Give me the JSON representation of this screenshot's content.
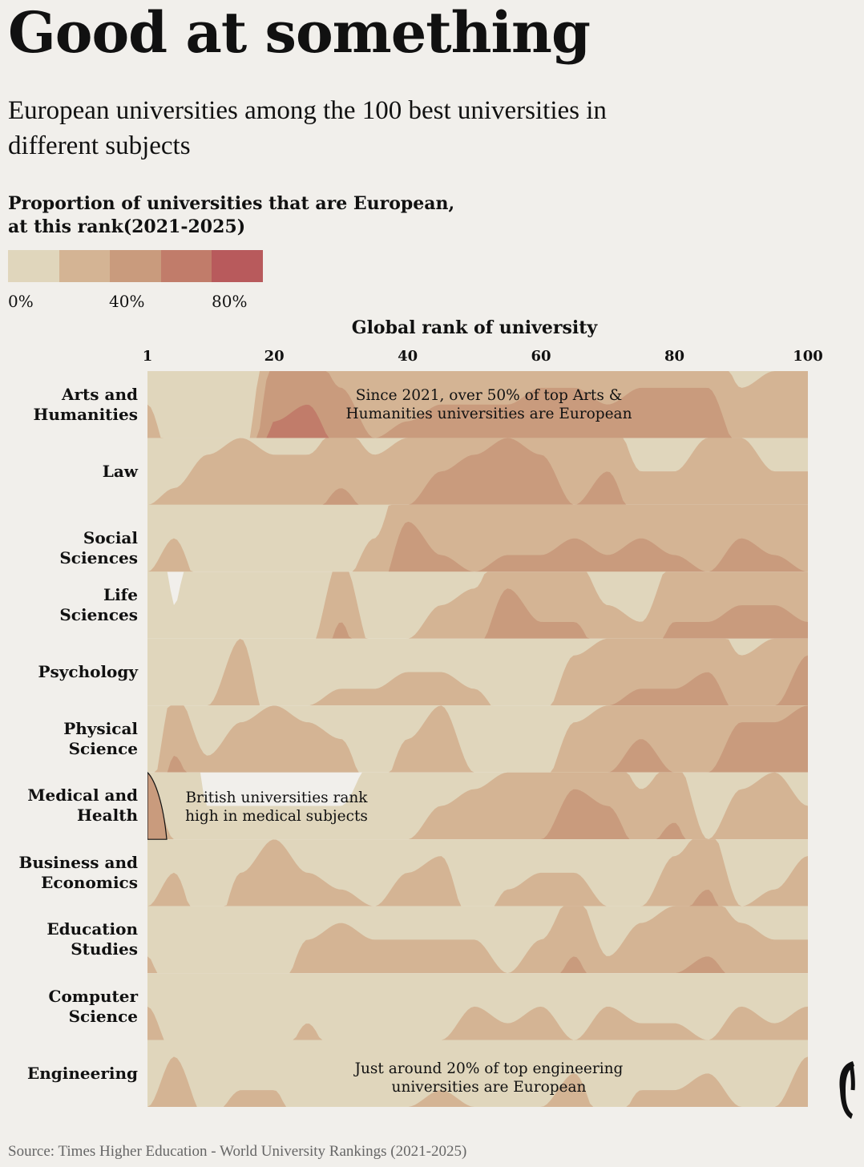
{
  "title": "Good at something",
  "subtitle": "European universities among the 100 best universities in different subjects",
  "legend": {
    "title_line1": "Proportion of universities that are European,",
    "title_line2": "at this rank(2021-2025)",
    "labels": [
      "0%",
      "40%",
      "80%"
    ],
    "colors": [
      "#e0d6bc",
      "#d4b494",
      "#c99b7d",
      "#c17c6a",
      "#b85a5c"
    ]
  },
  "colors": {
    "empty": "#f1efeb",
    "c0": "#e0d6bc",
    "c1": "#d4b494",
    "c2": "#c99b7d",
    "c3": "#c17c6a",
    "c4": "#b85a5c"
  },
  "annotations": {
    "arts_line1": "Since 2021, over 50% of top Arts &",
    "arts_line2": "Humanities universities are European",
    "medical_line1": "British universities rank",
    "medical_line2": "high in medical subjects",
    "eng_line1": "Just around 20% of top engineering",
    "eng_line2": "universities are European"
  },
  "source": "Source: Times Higher Education - World University Rankings (2021-2025)",
  "chart_data": {
    "type": "heatmap",
    "xlabel": "Global rank of university",
    "x_ticks": [
      1,
      20,
      40,
      60,
      80,
      100
    ],
    "xlim": [
      1,
      100
    ],
    "value_unit": "proportion European (0-1)",
    "x": [
      1,
      5,
      10,
      15,
      20,
      25,
      30,
      35,
      40,
      45,
      50,
      55,
      60,
      65,
      70,
      75,
      80,
      85,
      90,
      95,
      100
    ],
    "subjects": [
      {
        "name": "Arts and Humanities",
        "label_line1": "Arts and",
        "label_line2": "Humanities",
        "values": [
          0.3,
          0.1,
          0.05,
          0.1,
          0.65,
          0.7,
          0.55,
          0.4,
          0.45,
          0.5,
          0.5,
          0.5,
          0.55,
          0.55,
          0.5,
          0.55,
          0.55,
          0.55,
          0.35,
          0.4,
          0.4
        ]
      },
      {
        "name": "Law",
        "label_line1": "Law",
        "label_line2": "",
        "values": [
          0.2,
          0.25,
          0.35,
          0.4,
          0.35,
          0.35,
          0.45,
          0.35,
          0.4,
          0.5,
          0.55,
          0.6,
          0.55,
          0.4,
          0.5,
          0.3,
          0.3,
          0.4,
          0.4,
          0.3,
          0.3
        ]
      },
      {
        "name": "Social Sciences",
        "label_line1": "Social Sciences",
        "label_line2": "",
        "values": [
          0.2,
          0.3,
          0.1,
          0.1,
          0.1,
          0.05,
          0.15,
          0.3,
          0.55,
          0.45,
          0.4,
          0.45,
          0.45,
          0.5,
          0.45,
          0.5,
          0.45,
          0.4,
          0.5,
          0.45,
          0.4
        ]
      },
      {
        "name": "Life Sciences",
        "label_line1": "Life",
        "label_line2": "Sciences",
        "values": [
          0.2,
          0.02,
          0.15,
          0.2,
          0.1,
          0.15,
          0.45,
          0.15,
          0.2,
          0.3,
          0.35,
          0.55,
          0.45,
          0.45,
          0.3,
          0.25,
          0.45,
          0.45,
          0.5,
          0.5,
          0.45
        ]
      },
      {
        "name": "Psychology",
        "label_line1": "Psychology",
        "label_line2": "",
        "values": [
          0.1,
          0.1,
          0.2,
          0.4,
          0.05,
          0.2,
          0.25,
          0.25,
          0.3,
          0.3,
          0.25,
          0.15,
          0.15,
          0.35,
          0.4,
          0.45,
          0.45,
          0.5,
          0.35,
          0.4,
          0.55
        ]
      },
      {
        "name": "Physical Science",
        "label_line1": "Physical",
        "label_line2": "Science",
        "values": [
          0.1,
          0.45,
          0.25,
          0.35,
          0.4,
          0.35,
          0.3,
          0.1,
          0.3,
          0.4,
          0.2,
          0.15,
          0.15,
          0.35,
          0.4,
          0.5,
          0.4,
          0.4,
          0.55,
          0.55,
          0.6
        ]
      },
      {
        "name": "Medical and Health",
        "label_line1": "Medical and",
        "label_line2": "Health",
        "values": [
          0.4,
          0.2,
          0.02,
          0.02,
          0.02,
          0.02,
          0.02,
          0.05,
          0.2,
          0.3,
          0.35,
          0.4,
          0.4,
          0.55,
          0.5,
          0.35,
          0.45,
          0.2,
          0.35,
          0.4,
          0.3
        ]
      },
      {
        "name": "Business and Economics",
        "label_line1": "Business and",
        "label_line2": "Economics",
        "values": [
          0.2,
          0.3,
          0.05,
          0.3,
          0.4,
          0.3,
          0.25,
          0.2,
          0.3,
          0.35,
          0.1,
          0.25,
          0.3,
          0.3,
          0.2,
          0.2,
          0.35,
          0.45,
          0.2,
          0.25,
          0.35
        ]
      },
      {
        "name": "Education Studies",
        "label_line1": "Education",
        "label_line2": "Studies",
        "values": [
          0.25,
          0.05,
          0.05,
          0.05,
          0.1,
          0.3,
          0.35,
          0.3,
          0.3,
          0.3,
          0.3,
          0.2,
          0.3,
          0.45,
          0.25,
          0.35,
          0.4,
          0.45,
          0.35,
          0.3,
          0.3
        ]
      },
      {
        "name": "Computer Science",
        "label_line1": "Computer",
        "label_line2": "Science",
        "values": [
          0.3,
          0.15,
          0.2,
          0.2,
          0.1,
          0.25,
          0.1,
          0.05,
          0.15,
          0.2,
          0.3,
          0.25,
          0.3,
          0.2,
          0.3,
          0.25,
          0.25,
          0.2,
          0.3,
          0.25,
          0.3
        ]
      },
      {
        "name": "Engineering",
        "label_line1": "Engineering",
        "label_line2": "",
        "values": [
          0.2,
          0.35,
          0.15,
          0.25,
          0.25,
          0.05,
          0.05,
          0.15,
          0.2,
          0.25,
          0.2,
          0.1,
          0.2,
          0.3,
          0.1,
          0.25,
          0.25,
          0.3,
          0.2,
          0.2,
          0.35
        ]
      }
    ]
  }
}
